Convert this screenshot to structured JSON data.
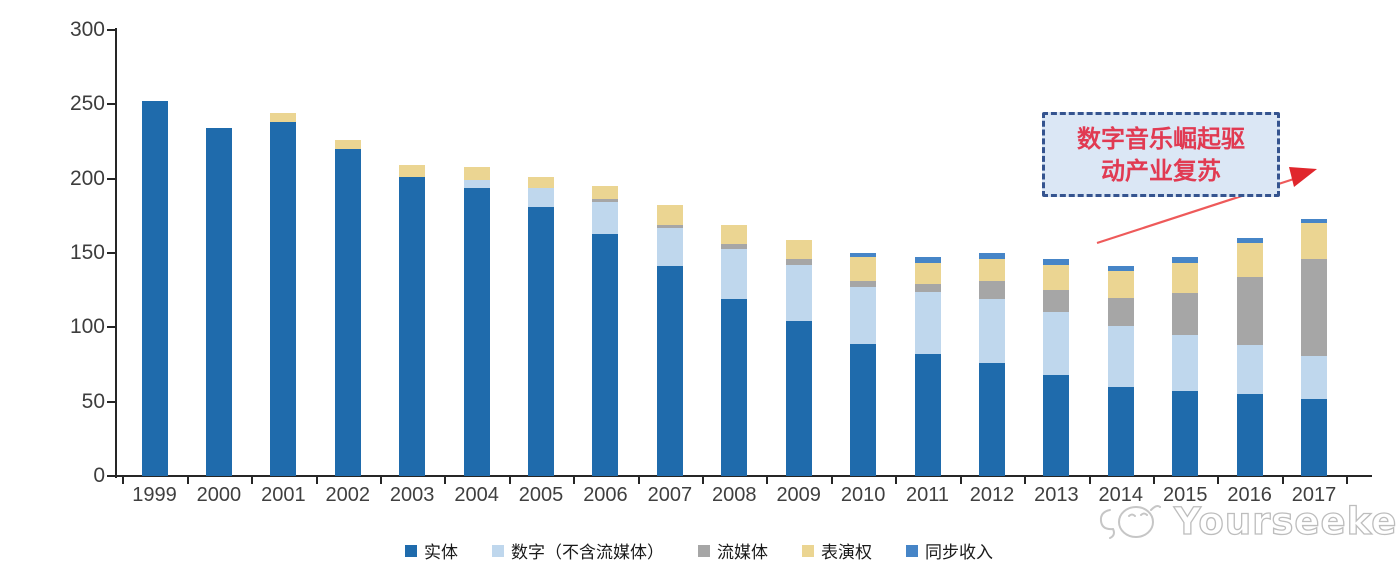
{
  "chart_data": {
    "type": "bar",
    "stacked": true,
    "title": "",
    "xlabel": "",
    "ylabel": "",
    "categories": [
      "1999",
      "2000",
      "2001",
      "2002",
      "2003",
      "2004",
      "2005",
      "2006",
      "2007",
      "2008",
      "2009",
      "2010",
      "2011",
      "2012",
      "2013",
      "2014",
      "2015",
      "2016",
      "2017"
    ],
    "series": [
      {
        "name": "实体",
        "color": "#1f6bac",
        "values": [
          252,
          234,
          238,
          220,
          201,
          194,
          181,
          163,
          141,
          119,
          104,
          89,
          82,
          76,
          68,
          60,
          57,
          55,
          52
        ]
      },
      {
        "name": "数字（不含流媒体）",
        "color": "#bfd7ed",
        "values": [
          0,
          0,
          0,
          0,
          0,
          5,
          13,
          21,
          26,
          34,
          38,
          38,
          42,
          43,
          42,
          41,
          38,
          33,
          29
        ]
      },
      {
        "name": "流媒体",
        "color": "#a6a6a6",
        "values": [
          0,
          0,
          0,
          0,
          0,
          0,
          0,
          2,
          2,
          3,
          4,
          4,
          5,
          12,
          15,
          19,
          28,
          46,
          65
        ]
      },
      {
        "name": "表演权",
        "color": "#ebd592",
        "values": [
          0,
          0,
          6,
          6,
          8,
          9,
          7,
          9,
          13,
          13,
          13,
          16,
          14,
          15,
          17,
          18,
          20,
          23,
          24
        ]
      },
      {
        "name": "同步收入",
        "color": "#4685c7",
        "values": [
          0,
          0,
          0,
          0,
          0,
          0,
          0,
          0,
          0,
          0,
          0,
          3,
          4,
          4,
          4,
          3,
          4,
          3,
          3
        ]
      }
    ],
    "ylim": [
      0,
      300
    ],
    "yticks": [
      0,
      50,
      100,
      150,
      200,
      250,
      300
    ],
    "grid": false,
    "legend_position": "bottom"
  },
  "annotation": {
    "line1": "数字音乐崛起驱",
    "line2": "动产业复苏",
    "box_fill": "#dbe7f5",
    "box_border": "#35548f",
    "text_color": "#e13a52",
    "arrow_line_color": "#ee5a5a",
    "arrowhead_color": "#e0262c"
  },
  "watermark": {
    "text": "Yourseeker",
    "color": "#bdbdbd"
  }
}
